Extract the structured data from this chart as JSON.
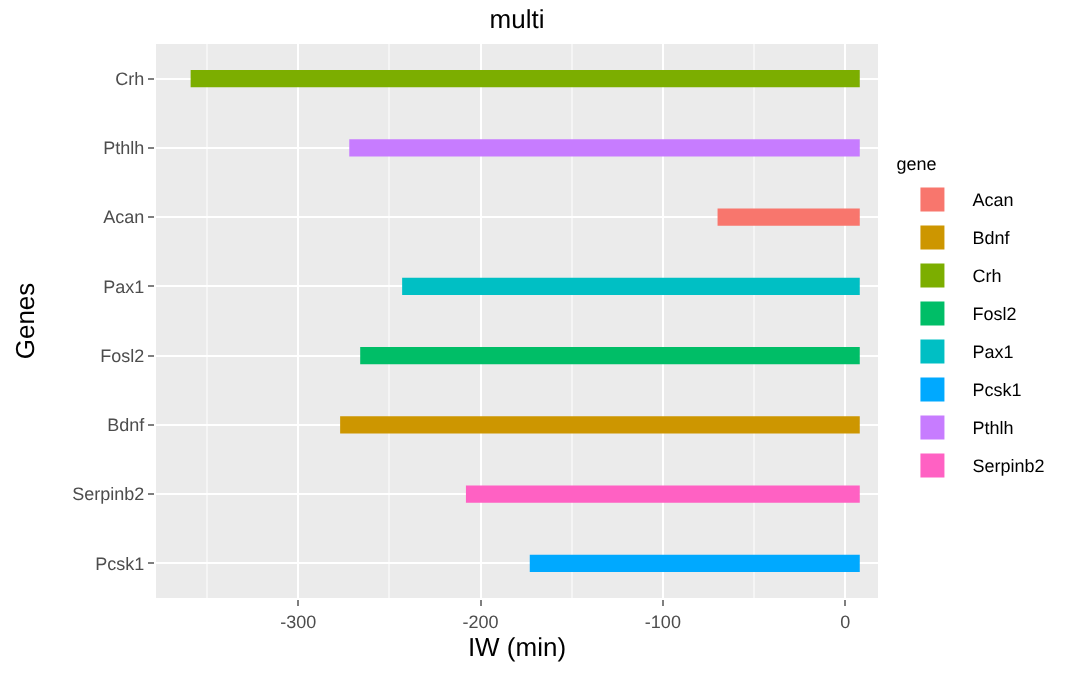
{
  "chart_data": {
    "type": "bar",
    "orientation": "horizontal",
    "title": "multi",
    "xlabel": "IW (min)",
    "ylabel": "Genes",
    "legend_title": "gene",
    "categories": [
      "Crh",
      "Pthlh",
      "Acan",
      "Pax1",
      "Fosl2",
      "Bdnf",
      "Serpinb2",
      "Pcsk1"
    ],
    "series": [
      {
        "name": "Acan",
        "color": "#f8766d",
        "values": [
          null,
          null,
          78,
          null,
          null,
          null,
          null,
          null
        ],
        "base": [
          null,
          null,
          -70,
          null,
          null,
          null,
          null,
          null
        ]
      },
      {
        "name": "Bdnf",
        "color": "#cd9600",
        "values": [
          null,
          null,
          null,
          null,
          null,
          285,
          null,
          null
        ],
        "base": [
          null,
          null,
          null,
          null,
          null,
          -277,
          null,
          null
        ]
      },
      {
        "name": "Crh",
        "color": "#7cae00",
        "values": [
          367,
          null,
          null,
          null,
          null,
          null,
          null,
          null
        ],
        "base": [
          -359,
          null,
          null,
          null,
          null,
          null,
          null,
          null
        ]
      },
      {
        "name": "Fosl2",
        "color": "#00be67",
        "values": [
          null,
          null,
          null,
          null,
          274,
          null,
          null,
          null
        ],
        "base": [
          null,
          null,
          null,
          null,
          -266,
          null,
          null,
          null
        ]
      },
      {
        "name": "Pax1",
        "color": "#00bfc4",
        "values": [
          null,
          null,
          null,
          251,
          null,
          null,
          null,
          null
        ],
        "base": [
          null,
          null,
          null,
          -243,
          null,
          null,
          null,
          null
        ]
      },
      {
        "name": "Pcsk1",
        "color": "#00a9ff",
        "values": [
          null,
          null,
          null,
          null,
          null,
          null,
          null,
          181
        ],
        "base": [
          null,
          null,
          null,
          null,
          null,
          null,
          null,
          -173
        ]
      },
      {
        "name": "Pthlh",
        "color": "#c77cff",
        "values": [
          null,
          280,
          null,
          null,
          null,
          null,
          null,
          null
        ],
        "base": [
          null,
          -272,
          null,
          null,
          null,
          null,
          null,
          null
        ]
      },
      {
        "name": "Serpinb2",
        "color": "#ff61c3",
        "values": [
          null,
          null,
          null,
          null,
          null,
          null,
          216,
          null
        ],
        "base": [
          null,
          null,
          null,
          null,
          null,
          null,
          -208,
          null
        ]
      }
    ],
    "xlim": [
      -378,
      18
    ],
    "xticks": [
      -300,
      -200,
      -100,
      0
    ],
    "grid": true,
    "legend": "right"
  }
}
